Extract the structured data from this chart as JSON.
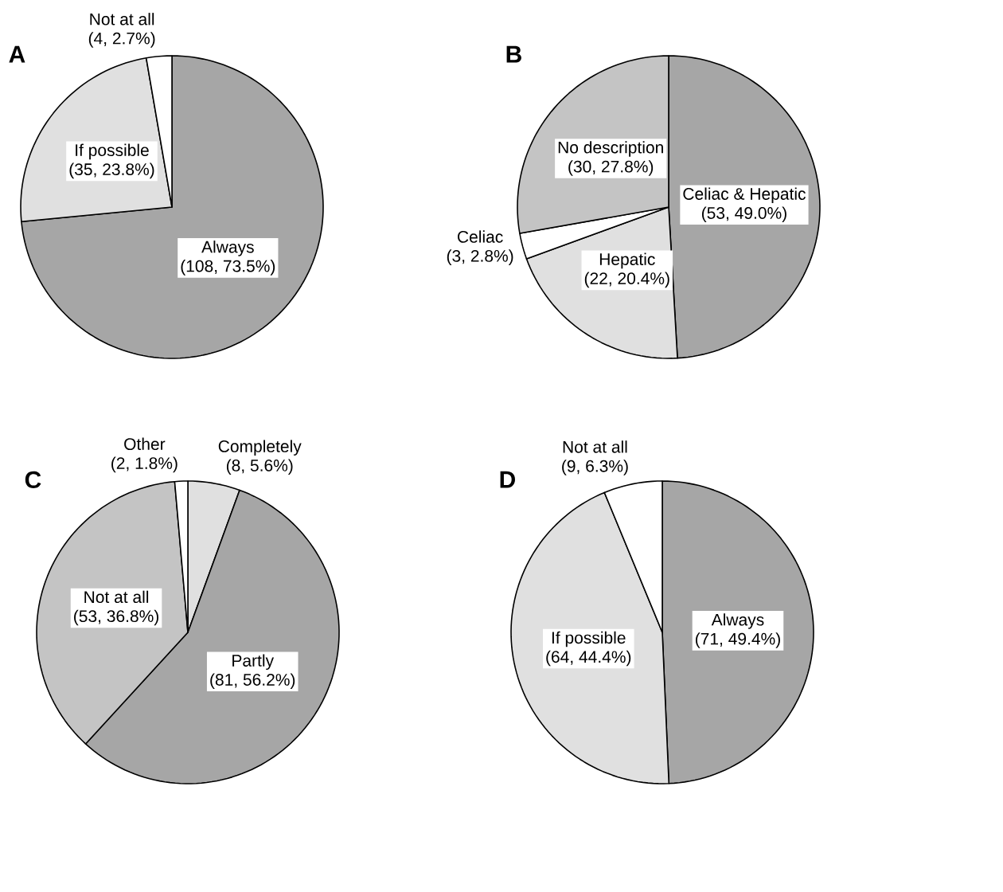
{
  "chart_data": [
    {
      "type": "pie",
      "title": "A",
      "categories": [
        "Always",
        "If possible",
        "Not at all"
      ],
      "values": [
        108,
        35,
        4
      ],
      "value_labels": [
        "(108, 73.5%)",
        "(35, 23.8%)",
        "(4, 2.7%)"
      ],
      "colors": [
        "#a6a6a6",
        "#e0e0e0",
        "#ffffff"
      ]
    },
    {
      "type": "pie",
      "title": "B",
      "categories": [
        "Celiac & Hepatic",
        "Hepatic",
        "Celiac",
        "No description"
      ],
      "values": [
        53,
        22,
        3,
        30
      ],
      "value_labels": [
        "(53, 49.0%)",
        "(22, 20.4%)",
        "(3, 2.8%)",
        "(30, 27.8%)"
      ],
      "colors": [
        "#a6a6a6",
        "#e0e0e0",
        "#ffffff",
        "#c4c4c4"
      ]
    },
    {
      "type": "pie",
      "title": "C",
      "categories": [
        "Completely",
        "Partly",
        "Not at all",
        "Other"
      ],
      "values": [
        8,
        81,
        53,
        2
      ],
      "value_labels": [
        "(8, 5.6%)",
        "(81, 56.2%)",
        "(53, 36.8%)",
        "(2, 1.8%)"
      ],
      "colors": [
        "#e0e0e0",
        "#a6a6a6",
        "#c4c4c4",
        "#ffffff"
      ]
    },
    {
      "type": "pie",
      "title": "D",
      "categories": [
        "Always",
        "If possible",
        "Not at all"
      ],
      "values": [
        71,
        64,
        9
      ],
      "value_labels": [
        "(71, 49.4%)",
        "(64, 44.4%)",
        "(9, 6.3%)"
      ],
      "colors": [
        "#a6a6a6",
        "#e0e0e0",
        "#ffffff"
      ]
    }
  ]
}
